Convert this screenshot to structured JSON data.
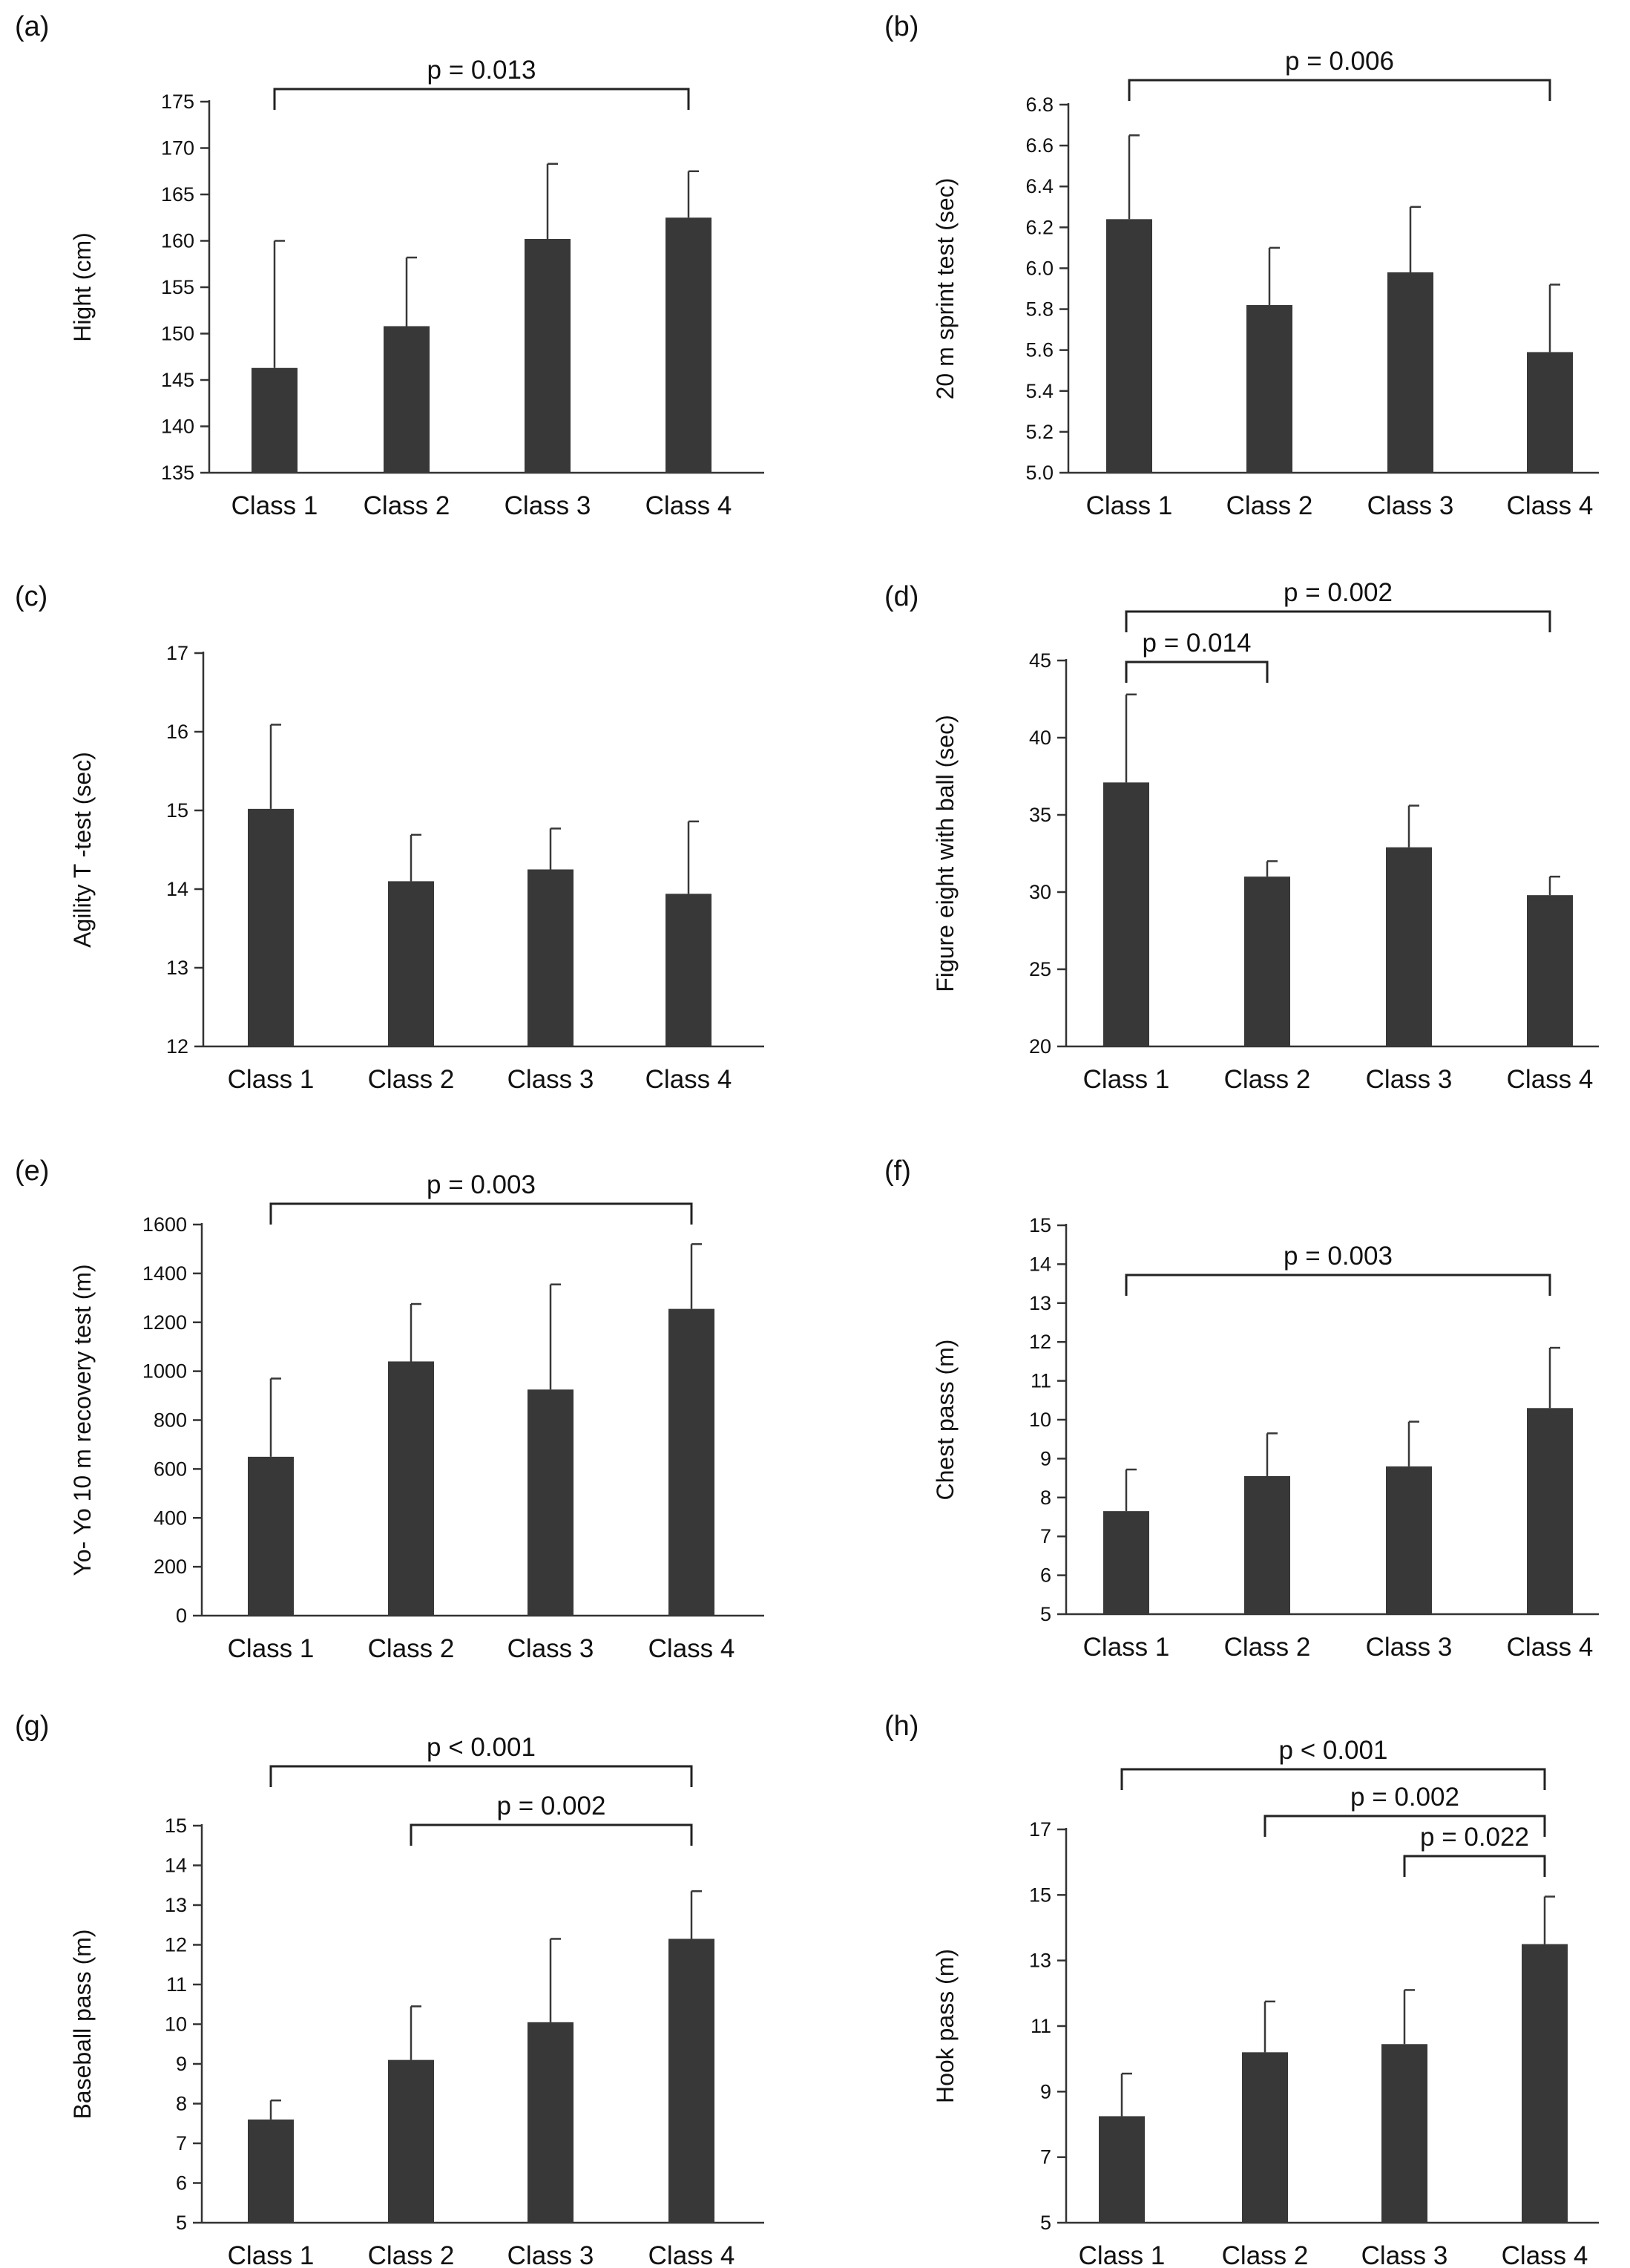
{
  "colors": {
    "bar": "#383838",
    "axis": "#333333",
    "text": "#111111",
    "background": "#ffffff"
  },
  "chart_data": [
    {
      "panel": "(a)",
      "type": "bar",
      "categories": [
        "Class 1",
        "Class 2",
        "Class 3",
        "Class 4"
      ],
      "values": [
        146.3,
        150.8,
        160.2,
        162.5
      ],
      "errors": [
        13.7,
        7.4,
        8.1,
        5.0
      ],
      "ylabel": "Hight (cm)",
      "ylim": [
        135,
        175
      ],
      "yticks": [
        135,
        140,
        145,
        150,
        155,
        160,
        165,
        170,
        175
      ],
      "tick_labels": [
        "135",
        "140",
        "145",
        "150",
        "155",
        "160",
        "165",
        "170",
        "175"
      ],
      "brackets": [
        {
          "from": 0,
          "to": 3,
          "label": "p = 0.013"
        }
      ]
    },
    {
      "panel": "(b)",
      "type": "bar",
      "categories": [
        "Class 1",
        "Class 2",
        "Class 3",
        "Class 4"
      ],
      "values": [
        6.24,
        5.82,
        5.98,
        5.59
      ],
      "errors": [
        0.41,
        0.28,
        0.32,
        0.33
      ],
      "ylabel": "20 m sprint test (sec)",
      "ylim": [
        5.0,
        6.8
      ],
      "yticks": [
        5.0,
        5.2,
        5.4,
        5.6,
        5.8,
        6.0,
        6.2,
        6.4,
        6.6,
        6.8
      ],
      "tick_labels": [
        "5.0",
        "5.2",
        "5.4",
        "5.6",
        "5.8",
        "6.0",
        "6.2",
        "6.4",
        "6.6",
        "6.8"
      ],
      "brackets": [
        {
          "from": 0,
          "to": 3,
          "label": "p = 0.006"
        }
      ]
    },
    {
      "panel": "(c)",
      "type": "bar",
      "categories": [
        "Class 1",
        "Class 2",
        "Class 3",
        "Class 4"
      ],
      "values": [
        15.02,
        14.1,
        14.25,
        13.94
      ],
      "errors": [
        1.07,
        0.59,
        0.52,
        0.92
      ],
      "ylabel": "Agility T -test (sec)",
      "ylim": [
        12,
        17
      ],
      "yticks": [
        12,
        13,
        14,
        15,
        16,
        17
      ],
      "tick_labels": [
        "12",
        "13",
        "14",
        "15",
        "16",
        "17"
      ],
      "brackets": []
    },
    {
      "panel": "(d)",
      "type": "bar",
      "categories": [
        "Class 1",
        "Class 2",
        "Class 3",
        "Class 4"
      ],
      "values": [
        37.1,
        31.0,
        32.9,
        29.8
      ],
      "errors": [
        5.7,
        1.0,
        2.7,
        1.2
      ],
      "ylabel": "Figure eight with ball (sec)",
      "ylim": [
        20,
        45
      ],
      "yticks": [
        20,
        25,
        30,
        35,
        40,
        45
      ],
      "tick_labels": [
        "20",
        "25",
        "30",
        "35",
        "40",
        "45"
      ],
      "brackets": [
        {
          "from": 0,
          "to": 3,
          "label": "p = 0.002"
        },
        {
          "from": 0,
          "to": 1,
          "label": "p = 0.014"
        }
      ]
    },
    {
      "panel": "(e)",
      "type": "bar",
      "categories": [
        "Class 1",
        "Class 2",
        "Class 3",
        "Class 4"
      ],
      "values": [
        650,
        1040,
        925,
        1255
      ],
      "errors": [
        320,
        235,
        430,
        265
      ],
      "ylabel": "Yo- Yo 10 m recovery test (m)",
      "ylim": [
        0,
        1600
      ],
      "yticks": [
        0,
        200,
        400,
        600,
        800,
        1000,
        1200,
        1400,
        1600
      ],
      "tick_labels": [
        "0",
        "200",
        "400",
        "600",
        "800",
        "1000",
        "1200",
        "1400",
        "1600"
      ],
      "brackets": [
        {
          "from": 0,
          "to": 3,
          "label": "p = 0.003"
        }
      ]
    },
    {
      "panel": "(f)",
      "type": "bar",
      "categories": [
        "Class 1",
        "Class 2",
        "Class 3",
        "Class 4"
      ],
      "values": [
        7.65,
        8.55,
        8.8,
        10.3
      ],
      "errors": [
        1.07,
        1.1,
        1.15,
        1.55
      ],
      "ylabel": "Chest pass (m)",
      "ylim": [
        5,
        15
      ],
      "yticks": [
        5,
        6,
        7,
        8,
        9,
        10,
        11,
        12,
        13,
        14,
        15
      ],
      "tick_labels": [
        "5",
        "6",
        "7",
        "8",
        "9",
        "10",
        "11",
        "12",
        "13",
        "14",
        "15"
      ],
      "brackets": [
        {
          "from": 0,
          "to": 3,
          "label": "p = 0.003"
        }
      ]
    },
    {
      "panel": "(g)",
      "type": "bar",
      "categories": [
        "Class 1",
        "Class 2",
        "Class 3",
        "Class 4"
      ],
      "values": [
        7.6,
        9.1,
        10.05,
        12.15
      ],
      "errors": [
        0.48,
        1.35,
        2.1,
        1.2
      ],
      "ylabel": "Baseball pass (m)",
      "ylim": [
        5,
        15
      ],
      "yticks": [
        5,
        6,
        7,
        8,
        9,
        10,
        11,
        12,
        13,
        14,
        15
      ],
      "tick_labels": [
        "5",
        "6",
        "7",
        "8",
        "9",
        "10",
        "11",
        "12",
        "13",
        "14",
        "15"
      ],
      "brackets": [
        {
          "from": 0,
          "to": 3,
          "label": "p < 0.001"
        },
        {
          "from": 1,
          "to": 3,
          "label": "p = 0.002"
        }
      ]
    },
    {
      "panel": "(h)",
      "type": "bar",
      "categories": [
        "Class 1",
        "Class 2",
        "Class 3",
        "Class 4"
      ],
      "values": [
        8.25,
        10.2,
        10.45,
        13.5
      ],
      "errors": [
        1.3,
        1.55,
        1.65,
        1.45
      ],
      "ylabel": "Hook pass (m)",
      "ylim": [
        5,
        17
      ],
      "yticks": [
        5,
        7,
        9,
        11,
        13,
        15,
        17
      ],
      "tick_labels": [
        "5",
        "7",
        "9",
        "11",
        "13",
        "15",
        "17"
      ],
      "brackets": [
        {
          "from": 0,
          "to": 3,
          "label": "p < 0.001"
        },
        {
          "from": 1,
          "to": 3,
          "label": "p = 0.002"
        },
        {
          "from": 2,
          "to": 3,
          "label": "p = 0.022"
        }
      ]
    }
  ]
}
